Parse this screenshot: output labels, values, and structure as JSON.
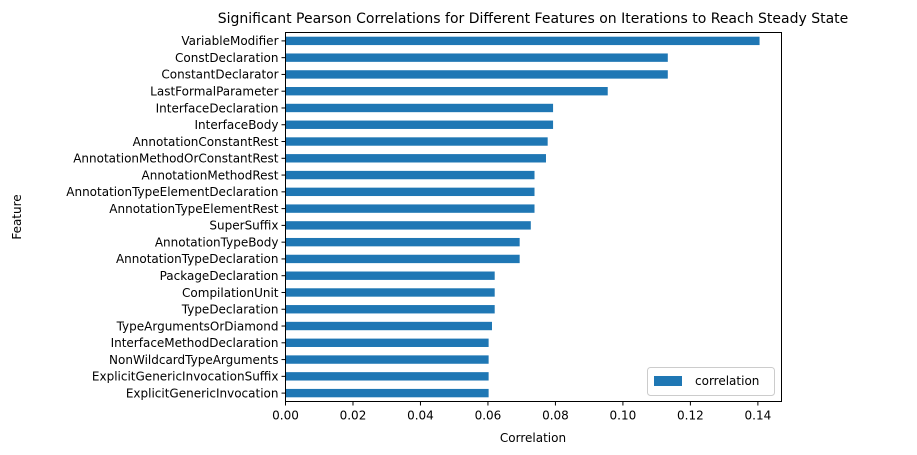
{
  "chart_data": {
    "type": "bar",
    "orientation": "horizontal",
    "title": "Significant Pearson Correlations for Different Features on Iterations to Reach Steady State",
    "xlabel": "Correlation",
    "ylabel": "Feature",
    "xlim": [
      0,
      0.147
    ],
    "xticks": [
      "0.00",
      "0.02",
      "0.04",
      "0.06",
      "0.08",
      "0.10",
      "0.12",
      "0.14"
    ],
    "grid": false,
    "legend_position": "lower-right",
    "series": [
      {
        "name": "correlation",
        "color": "#1f77b4",
        "categories": [
          "VariableModifier",
          "ConstDeclaration",
          "ConstantDeclarator",
          "LastFormalParameter",
          "InterfaceDeclaration",
          "InterfaceBody",
          "AnnotationConstantRest",
          "AnnotationMethodOrConstantRest",
          "AnnotationMethodRest",
          "AnnotationTypeElementDeclaration",
          "AnnotationTypeElementRest",
          "SuperSuffix",
          "AnnotationTypeBody",
          "AnnotationTypeDeclaration",
          "PackageDeclaration",
          "CompilationUnit",
          "TypeDeclaration",
          "TypeArgumentsOrDiamond",
          "InterfaceMethodDeclaration",
          "NonWildcardTypeArguments",
          "ExplicitGenericInvocationSuffix",
          "ExplicitGenericInvocation"
        ],
        "values": [
          0.1405,
          0.1133,
          0.1133,
          0.0955,
          0.0793,
          0.0793,
          0.0777,
          0.0772,
          0.0738,
          0.0738,
          0.0738,
          0.0727,
          0.0694,
          0.0694,
          0.062,
          0.062,
          0.062,
          0.0612,
          0.0602,
          0.0602,
          0.0602,
          0.0602
        ]
      }
    ]
  }
}
